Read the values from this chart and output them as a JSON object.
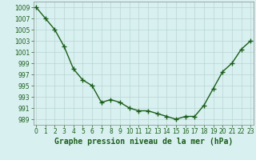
{
  "x": [
    0,
    1,
    2,
    3,
    4,
    5,
    6,
    7,
    8,
    9,
    10,
    11,
    12,
    13,
    14,
    15,
    16,
    17,
    18,
    19,
    20,
    21,
    22,
    23
  ],
  "y": [
    1009,
    1007,
    1005,
    1002,
    998,
    996,
    995,
    992,
    992.5,
    992,
    991,
    990.5,
    990.5,
    990,
    989.5,
    989,
    989.5,
    989.5,
    991.5,
    994.5,
    997.5,
    999,
    1001.5,
    1003
  ],
  "line_color": "#1a5e1a",
  "marker": "+",
  "bg_color": "#d9f0f0",
  "grid_color": "#b8d4d4",
  "xlabel": "Graphe pression niveau de la mer (hPa)",
  "xlabel_fontsize": 7,
  "ylim": [
    988,
    1010
  ],
  "xlim": [
    -0.3,
    23.3
  ],
  "yticks": [
    989,
    991,
    993,
    995,
    997,
    999,
    1001,
    1003,
    1005,
    1007,
    1009
  ],
  "xticks": [
    0,
    1,
    2,
    3,
    4,
    5,
    6,
    7,
    8,
    9,
    10,
    11,
    12,
    13,
    14,
    15,
    16,
    17,
    18,
    19,
    20,
    21,
    22,
    23
  ],
  "tick_fontsize": 5.5,
  "line_width": 1.0,
  "marker_size": 4
}
